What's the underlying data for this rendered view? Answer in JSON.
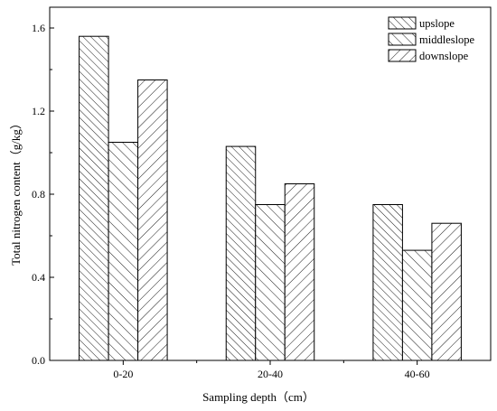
{
  "chart_data": {
    "type": "bar",
    "title": "",
    "xlabel": "Sampling depth（cm）",
    "ylabel": "Total nitrogen content（g/kg）",
    "categories": [
      "0-20",
      "20-40",
      "40-60"
    ],
    "ylim": [
      0,
      1.7
    ],
    "yticks": [
      0.0,
      0.4,
      0.8,
      1.2,
      1.6
    ],
    "ytick_labels": [
      "0.0",
      "0.4",
      "0.8",
      "1.2",
      "1.6"
    ],
    "grid": false,
    "legend": "top-right",
    "series": [
      {
        "name": "upslope",
        "values": [
          1.56,
          1.03,
          0.75
        ],
        "pattern": "hatch-dense-forward"
      },
      {
        "name": "middleslope",
        "values": [
          1.05,
          0.75,
          0.53
        ],
        "pattern": "hatch-forward"
      },
      {
        "name": "downslope",
        "values": [
          1.35,
          0.85,
          0.66
        ],
        "pattern": "hatch-backward"
      }
    ]
  }
}
